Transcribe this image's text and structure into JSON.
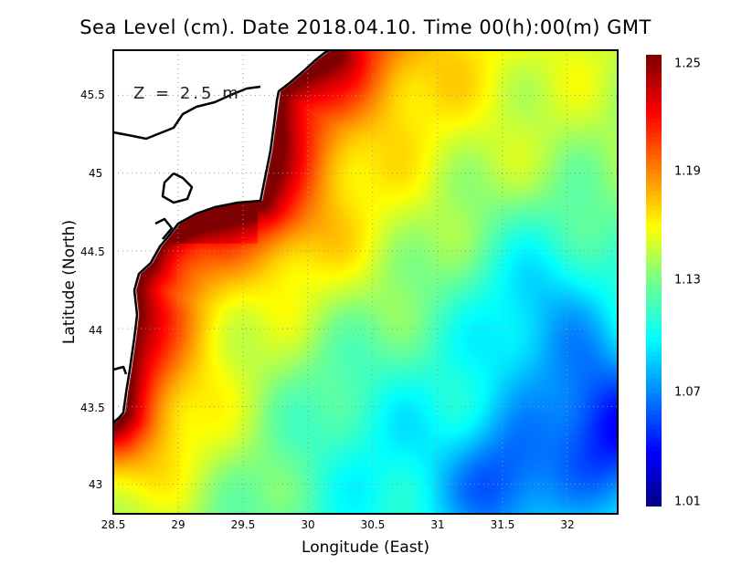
{
  "title": "Sea Level (cm). Date 2018.04.10. Time 00(h):00(m) GMT",
  "depth_label": "Z = 2.5 m",
  "x_axis": {
    "label": "Longitude (East)",
    "ticks": [
      "28.5",
      "29",
      "29.5",
      "30",
      "30.5",
      "31",
      "31.5",
      "32"
    ],
    "range": [
      28.5,
      32.39
    ]
  },
  "y_axis": {
    "label": "Latitude (North)",
    "ticks": [
      "45.5",
      "45",
      "44.5",
      "44",
      "43.5",
      "43"
    ],
    "range": [
      42.81,
      45.79
    ]
  },
  "colorbar": {
    "labels": [
      "1.25",
      "1.19",
      "1.13",
      "1.07",
      "1.01"
    ],
    "range": [
      1.01,
      1.25
    ],
    "colors": [
      "#00007f",
      "#0000ff",
      "#0080ff",
      "#00ffff",
      "#70ff90",
      "#ffff00",
      "#ff8000",
      "#ff0000",
      "#7f0000"
    ]
  },
  "land_color": "#ffffff",
  "grid": true
}
